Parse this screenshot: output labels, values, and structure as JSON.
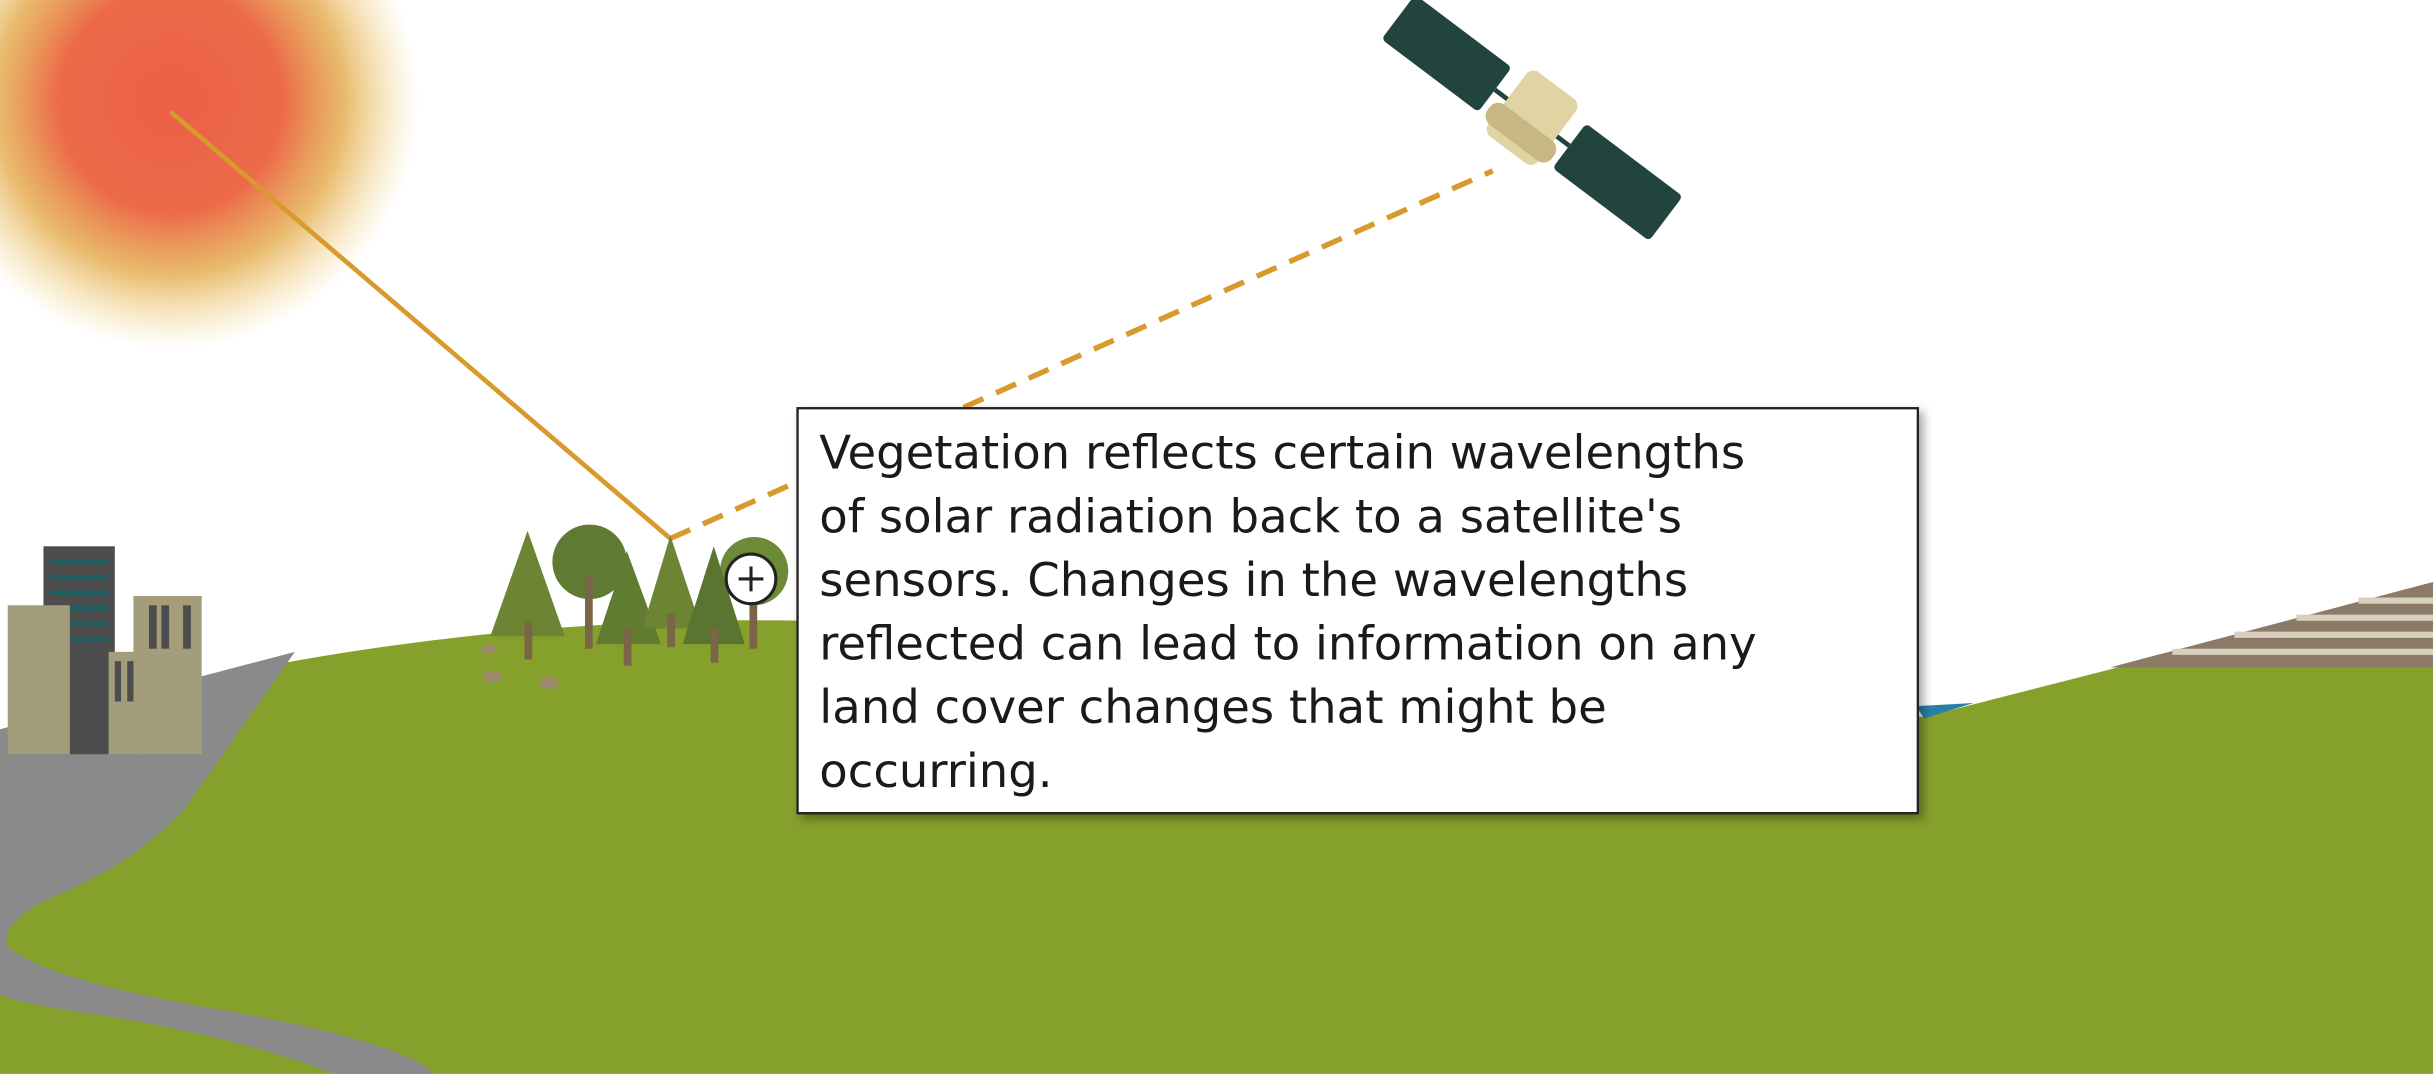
{
  "tooltip": {
    "lines": [
      "Vegetation reflects certain wavelengths",
      "of solar radiation back to a satellite's",
      "sensors. Changes in the wavelengths",
      "reflected can lead to information on any",
      "land cover changes that might be",
      "occurring."
    ]
  }
}
